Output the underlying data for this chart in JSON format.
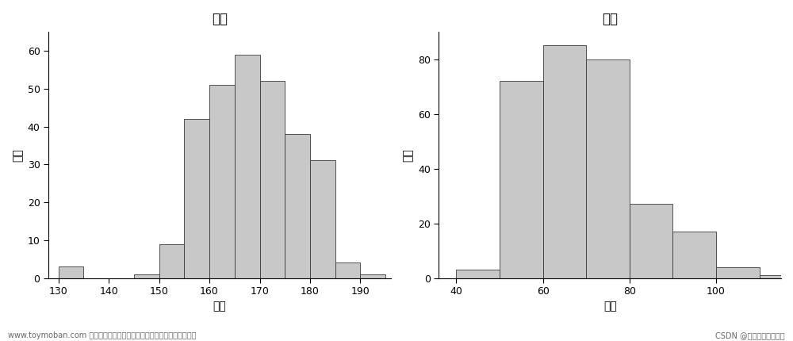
{
  "height": {
    "title": "身高",
    "xlabel": "组别",
    "ylabel": "频数",
    "bin_edges": [
      130,
      135,
      140,
      145,
      150,
      155,
      160,
      165,
      170,
      175,
      180,
      185,
      190,
      195
    ],
    "counts": [
      3,
      0,
      0,
      1,
      9,
      42,
      51,
      59,
      52,
      38,
      31,
      4,
      1
    ],
    "xlim": [
      128,
      196
    ],
    "ylim": [
      0,
      65
    ],
    "xticks": [
      130,
      140,
      150,
      160,
      170,
      180,
      190
    ],
    "yticks": [
      0,
      10,
      20,
      30,
      40,
      50,
      60
    ]
  },
  "weight": {
    "title": "体重",
    "xlabel": "组别",
    "ylabel": "频数",
    "bin_edges": [
      40,
      50,
      60,
      70,
      80,
      90,
      100,
      110,
      115
    ],
    "counts": [
      3,
      72,
      85,
      80,
      27,
      17,
      4,
      1
    ],
    "xlim": [
      36,
      115
    ],
    "ylim": [
      0,
      90
    ],
    "xticks": [
      40,
      60,
      80,
      100
    ],
    "yticks": [
      0,
      20,
      40,
      60,
      80
    ]
  },
  "bar_color": "#c8c8c8",
  "bar_edgecolor": "#3a3a3a",
  "bg_color": "#ffffff",
  "watermark_left": "www.toymoban.com 网络图片仅供展示，非存储，如有侵权请联系删除。",
  "watermark_right": "CSDN @数据人的自我救赎",
  "title_fontsize": 12,
  "label_fontsize": 10,
  "tick_fontsize": 9,
  "watermark_fontsize": 7
}
